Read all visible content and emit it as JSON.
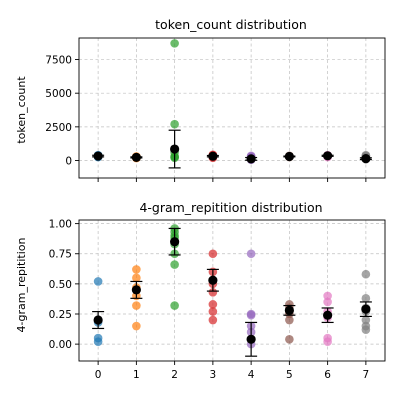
{
  "colors": [
    "#1f77b4",
    "#ff7f0e",
    "#2ca02c",
    "#d62728",
    "#9467bd",
    "#8c564b",
    "#e377c2",
    "#7f7f7f"
  ],
  "chart_data": [
    {
      "type": "scatter",
      "title": "token_count distribution",
      "xlabel": "",
      "ylabel": "token_count",
      "xlim": [
        -0.5,
        7.5
      ],
      "ylim": [
        -1300,
        9100
      ],
      "x_ticks": [
        0,
        1,
        2,
        3,
        4,
        5,
        6,
        7
      ],
      "x_ticks_visible": false,
      "y_ticks": [
        0,
        2500,
        5000,
        7500
      ],
      "y_tick_labels": [
        "0",
        "2500",
        "5000",
        "7500"
      ],
      "grid": true,
      "points": [
        [
          280,
          350,
          400,
          320,
          250,
          380,
          300
        ],
        [
          200,
          250,
          300,
          180,
          220,
          260
        ],
        [
          8700,
          2700,
          600,
          300,
          250,
          200
        ],
        [
          350,
          400,
          300,
          250,
          380,
          420,
          200
        ],
        [
          100,
          250,
          300,
          50,
          350,
          150
        ],
        [
          300,
          250,
          350,
          280,
          320
        ],
        [
          350,
          400,
          300,
          250,
          380
        ],
        [
          300,
          250,
          200,
          350,
          400,
          100
        ]
      ],
      "means": [
        330,
        230,
        850,
        320,
        120,
        300,
        350,
        140
      ],
      "errors": [
        60,
        40,
        1400,
        50,
        100,
        30,
        40,
        60
      ]
    },
    {
      "type": "scatter",
      "title": "4-gram_repitition distribution",
      "xlabel": "",
      "ylabel": "4-gram_repitition",
      "xlim": [
        -0.5,
        7.5
      ],
      "ylim": [
        -0.14,
        1.03
      ],
      "x_ticks": [
        0,
        1,
        2,
        3,
        4,
        5,
        6,
        7
      ],
      "x_tick_labels": [
        "0",
        "1",
        "2",
        "3",
        "4",
        "5",
        "6",
        "7"
      ],
      "y_ticks": [
        0.0,
        0.25,
        0.5,
        0.75,
        1.0
      ],
      "y_tick_labels": [
        "0.00",
        "0.25",
        "0.50",
        "0.75",
        "1.00"
      ],
      "grid": true,
      "points": [
        [
          0.52,
          0.2,
          0.18,
          0.05,
          0.02
        ],
        [
          0.62,
          0.55,
          0.47,
          0.4,
          0.32,
          0.15
        ],
        [
          0.96,
          0.93,
          0.9,
          0.88,
          0.83,
          0.75,
          0.66,
          0.32
        ],
        [
          0.75,
          0.6,
          0.5,
          0.43,
          0.33,
          0.27,
          0.2
        ],
        [
          0.75,
          0.25,
          0.24,
          0.15,
          0.1,
          0.0
        ],
        [
          0.33,
          0.3,
          0.27,
          0.25,
          0.2,
          0.04
        ],
        [
          0.4,
          0.35,
          0.27,
          0.22,
          0.05,
          0.02
        ],
        [
          0.58,
          0.38,
          0.3,
          0.27,
          0.2,
          0.15,
          0.12
        ]
      ],
      "means": [
        0.2,
        0.45,
        0.85,
        0.53,
        0.04,
        0.28,
        0.24,
        0.29
      ],
      "errors": [
        0.07,
        0.07,
        0.11,
        0.09,
        0.14,
        0.04,
        0.06,
        0.06
      ]
    }
  ]
}
